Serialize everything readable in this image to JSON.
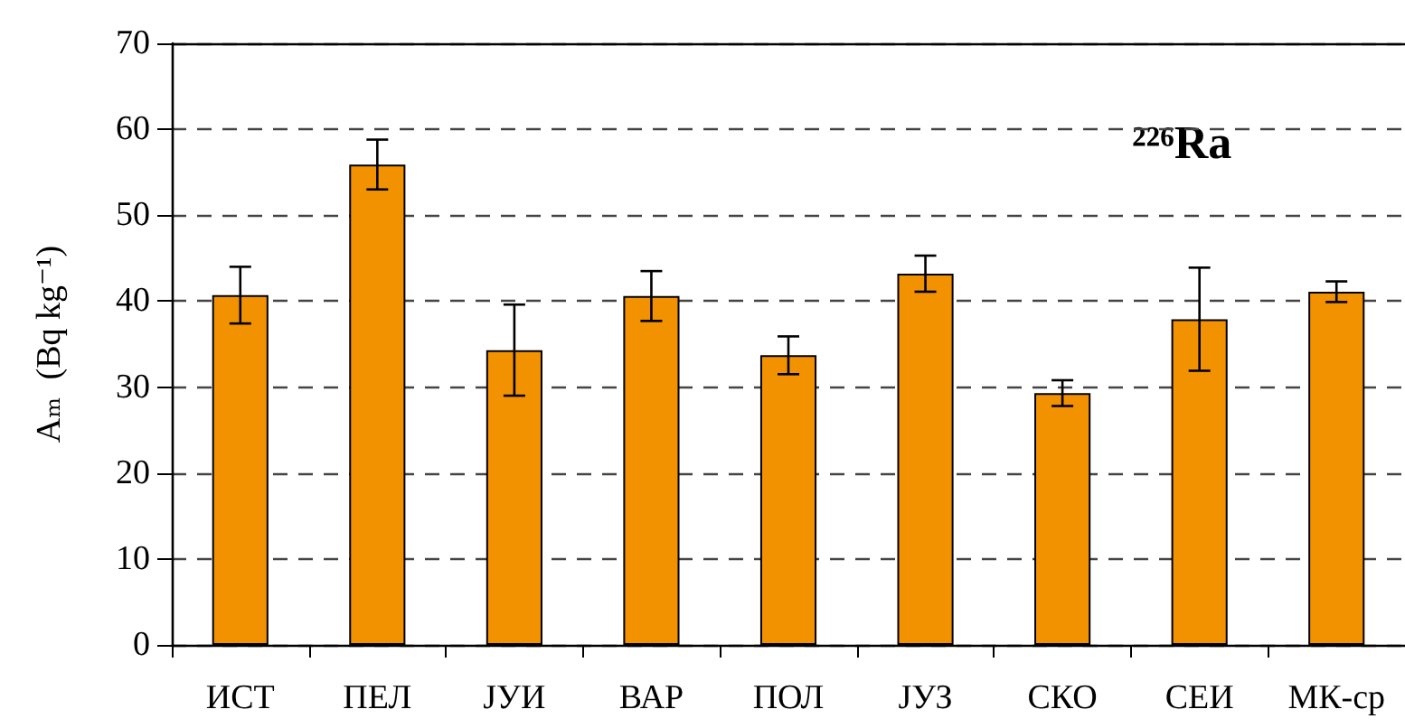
{
  "chart_data": {
    "type": "bar",
    "ylabel": "Aₘ  (Bq kg⁻¹)",
    "annotations": [
      "²²⁶Ra"
    ],
    "categories": [
      "ИСТ",
      "ПЕЛ",
      "ЈУИ",
      "ВАР",
      "ПОЛ",
      "ЈУЗ",
      "СКО",
      "СЕИ",
      "МК-ср"
    ],
    "values": [
      40.7,
      55.9,
      34.3,
      40.6,
      33.7,
      43.2,
      29.3,
      37.9,
      41.1
    ],
    "errors": [
      3.3,
      2.9,
      5.3,
      2.9,
      2.2,
      2.1,
      1.5,
      6.0,
      1.2
    ],
    "color": "#f39200",
    "ylim": [
      0,
      70
    ],
    "yticks": [
      0,
      10,
      20,
      30,
      40,
      50,
      60,
      70
    ],
    "grid": "y"
  }
}
